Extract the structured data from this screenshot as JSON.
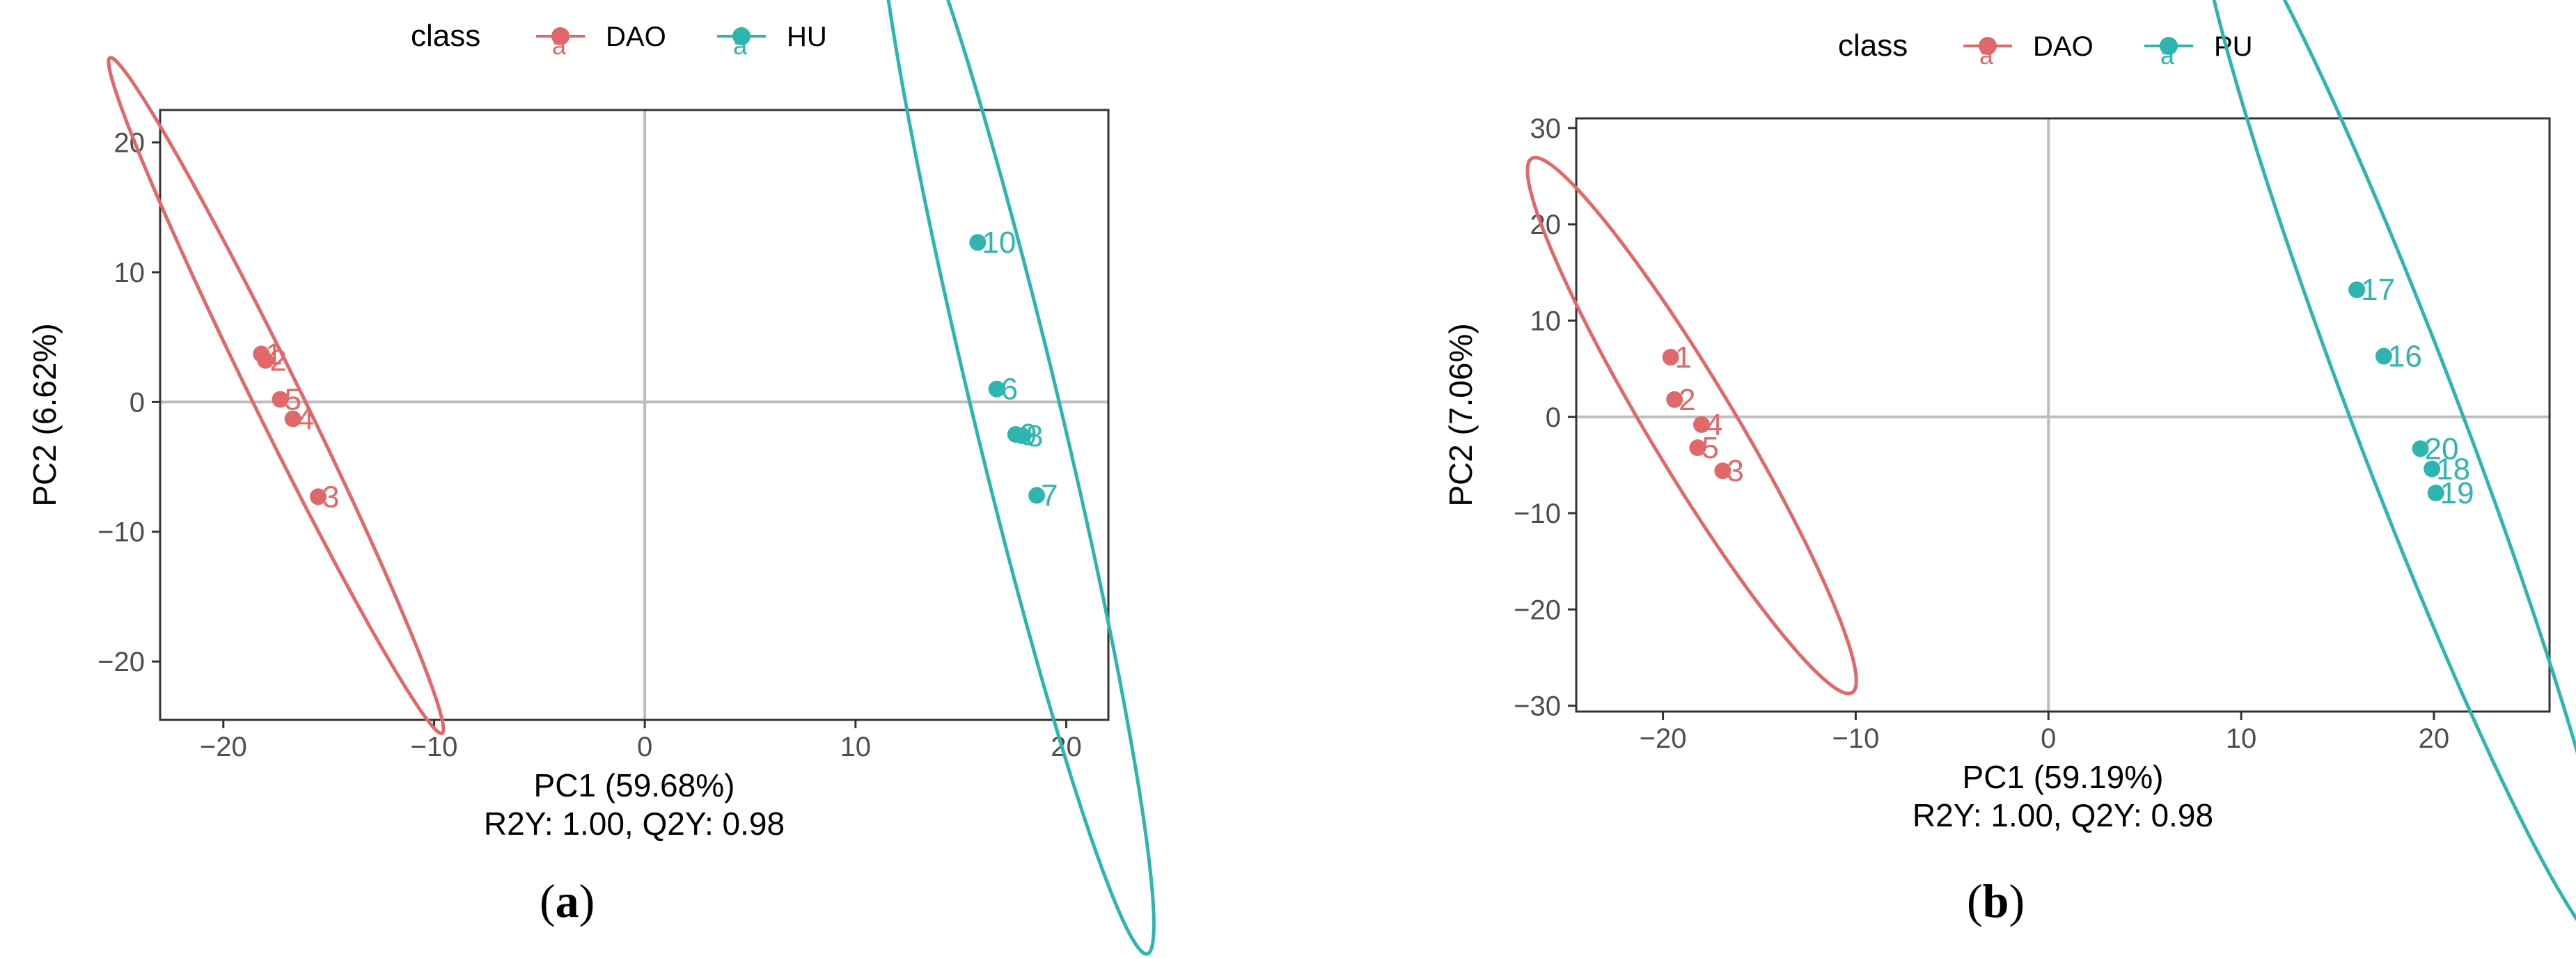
{
  "chart_data": [
    {
      "type": "scatter",
      "panel_label": "a",
      "xlabel": "PC1 (59.68%)",
      "subtitle": "R2Y: 1.00, Q2Y: 0.98",
      "ylabel": "PC2 (6.62%)",
      "xlim": [
        -23,
        22
      ],
      "ylim": [
        -24.5,
        22.5
      ],
      "xticks": [
        -20,
        -10,
        0,
        10,
        20
      ],
      "yticks": [
        -20,
        -10,
        0,
        10,
        20
      ],
      "legend": {
        "title": "class",
        "position": "top",
        "entries": [
          "DAO",
          "HU"
        ]
      },
      "series": [
        {
          "name": "DAO",
          "color": "#E0686A",
          "points": [
            {
              "label": "1",
              "x": -18.2,
              "y": 3.7
            },
            {
              "label": "2",
              "x": -18.0,
              "y": 3.2
            },
            {
              "label": "3",
              "x": -15.5,
              "y": -7.3
            },
            {
              "label": "4",
              "x": -16.7,
              "y": -1.3
            },
            {
              "label": "5",
              "x": -17.3,
              "y": 0.2
            }
          ],
          "ellipse": {
            "cx": -17.5,
            "cy": 0.5,
            "angle_deg": -73.2,
            "rx": 27.2,
            "ry": 1.2
          }
        },
        {
          "name": "HU",
          "color": "#2FB5B0",
          "points": [
            {
              "label": "6",
              "x": 16.7,
              "y": 1.0
            },
            {
              "label": "7",
              "x": 18.6,
              "y": -7.2
            },
            {
              "label": "8",
              "x": 17.9,
              "y": -2.6
            },
            {
              "label": "9",
              "x": 17.6,
              "y": -2.5
            },
            {
              "label": "10",
              "x": 15.8,
              "y": 12.3
            }
          ],
          "ellipse": {
            "cx": 17.6,
            "cy": -0.4,
            "angle_deg": -81.6,
            "rx": 42.6,
            "ry": 2.1
          }
        }
      ]
    },
    {
      "type": "scatter",
      "panel_label": "b",
      "xlabel": "PC1 (59.19%)",
      "subtitle": "R2Y: 1.00, Q2Y: 0.98",
      "ylabel": "PC2 (7.06%)",
      "xlim": [
        -24.5,
        26
      ],
      "ylim": [
        -30.6,
        31
      ],
      "xticks": [
        -20,
        -10,
        0,
        10,
        20
      ],
      "yticks": [
        -30,
        -20,
        -10,
        0,
        10,
        20,
        30
      ],
      "legend": {
        "title": "class",
        "position": "top",
        "entries": [
          "DAO",
          "PU"
        ]
      },
      "series": [
        {
          "name": "DAO",
          "color": "#E0686A",
          "points": [
            {
              "label": "1",
              "x": -19.6,
              "y": 6.2
            },
            {
              "label": "2",
              "x": -19.4,
              "y": 1.8
            },
            {
              "label": "3",
              "x": -16.9,
              "y": -5.6
            },
            {
              "label": "4",
              "x": -18.0,
              "y": -0.8
            },
            {
              "label": "5",
              "x": -18.2,
              "y": -3.2
            }
          ],
          "ellipse": {
            "cx": -18.5,
            "cy": -0.9,
            "angle_deg": -73.6,
            "rx": 29.0,
            "ry": 2.5
          }
        },
        {
          "name": "PU",
          "color": "#2FB5B0",
          "points": [
            {
              "label": "16",
              "x": 17.4,
              "y": 6.3
            },
            {
              "label": "17",
              "x": 16.0,
              "y": 13.2
            },
            {
              "label": "18",
              "x": 19.9,
              "y": -5.4
            },
            {
              "label": "19",
              "x": 20.1,
              "y": -7.9
            },
            {
              "label": "20",
              "x": 19.3,
              "y": -3.3
            }
          ],
          "ellipse": {
            "cx": 18.6,
            "cy": -0.1,
            "angle_deg": -79.3,
            "rx": 56.3,
            "ry": 2.9
          }
        }
      ]
    }
  ]
}
